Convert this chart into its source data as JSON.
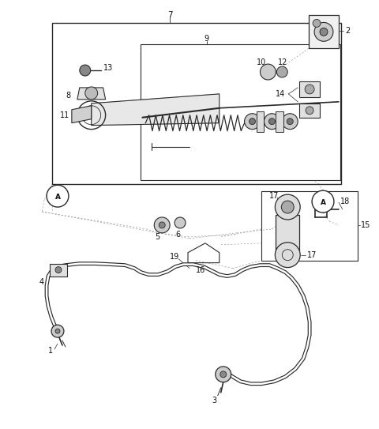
{
  "bg_color": "#ffffff",
  "line_color": "#2a2a2a",
  "dashed_color": "#999999",
  "fig_width": 4.8,
  "fig_height": 5.43,
  "dpi": 100
}
